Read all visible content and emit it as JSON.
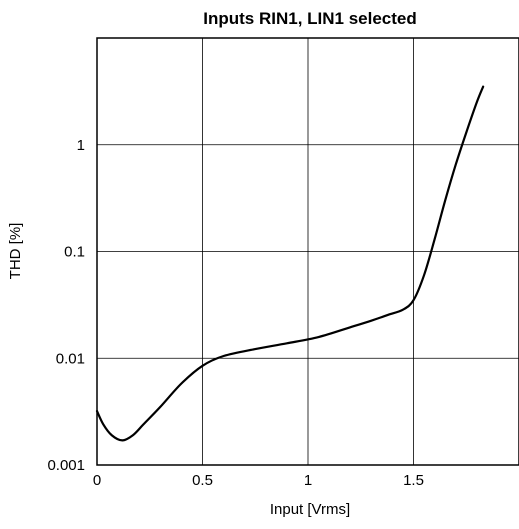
{
  "chart_data": {
    "type": "line",
    "title": "Inputs RIN1, LIN1 selected",
    "xlabel": "Input [Vrms]",
    "ylabel": "THD [%]",
    "xlim": [
      0,
      2.0
    ],
    "ylim": [
      0.001,
      10
    ],
    "yscale": "log",
    "grid": true,
    "legend": "none",
    "xticks": [
      {
        "value": 0,
        "label": "0"
      },
      {
        "value": 0.5,
        "label": "0.5"
      },
      {
        "value": 1,
        "label": "1"
      },
      {
        "value": 1.5,
        "label": "1.5"
      }
    ],
    "yticks": [
      {
        "value": 0.001,
        "label": "0.001"
      },
      {
        "value": 0.01,
        "label": "0.01"
      },
      {
        "value": 0.1,
        "label": "0.1"
      },
      {
        "value": 1,
        "label": "1"
      }
    ],
    "series": [
      {
        "color": "#000000",
        "x": [
          0.0,
          0.03,
          0.07,
          0.12,
          0.17,
          0.22,
          0.3,
          0.4,
          0.5,
          0.6,
          0.75,
          0.9,
          1.05,
          1.2,
          1.3,
          1.38,
          1.45,
          1.5,
          1.55,
          1.6,
          1.65,
          1.7,
          1.75,
          1.8,
          1.83
        ],
        "y": [
          0.0032,
          0.0024,
          0.0019,
          0.0017,
          0.0019,
          0.0024,
          0.0035,
          0.0058,
          0.0085,
          0.0105,
          0.0122,
          0.0138,
          0.0158,
          0.0195,
          0.0225,
          0.0255,
          0.0285,
          0.035,
          0.06,
          0.13,
          0.3,
          0.65,
          1.3,
          2.5,
          3.5
        ]
      }
    ]
  }
}
